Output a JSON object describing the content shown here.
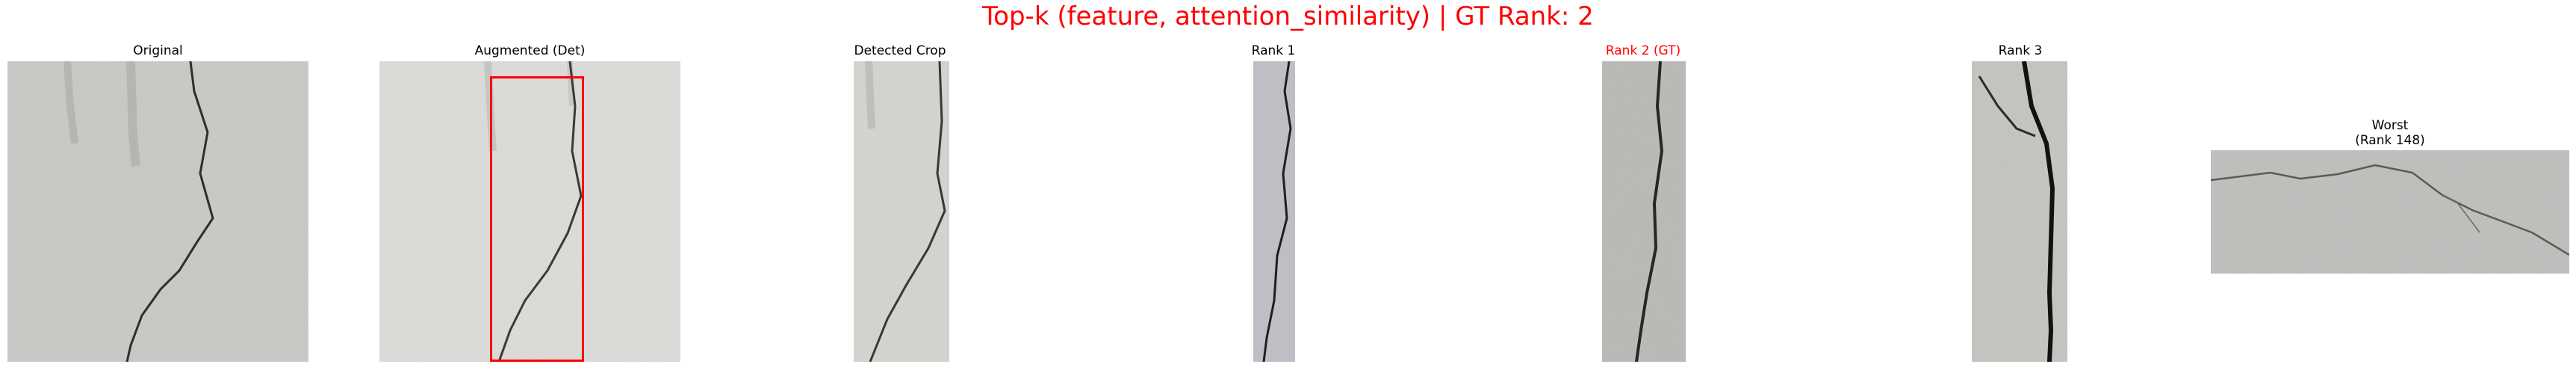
{
  "figure": {
    "title": "Top-k (feature, attention_similarity) | GT Rank: 2",
    "title_color": "#ff0000",
    "highlight_color": "#ff0000"
  },
  "panels": {
    "original": {
      "label": "Original"
    },
    "augmented": {
      "label": "Augmented (Det)"
    },
    "detected": {
      "label": "Detected Crop"
    },
    "rank1": {
      "label": "Rank 1"
    },
    "rank2": {
      "label": "Rank 2 (GT)"
    },
    "rank3": {
      "label": "Rank 3"
    },
    "worst": {
      "label_line1": "Worst",
      "label_line2": "(Rank 148)"
    }
  }
}
